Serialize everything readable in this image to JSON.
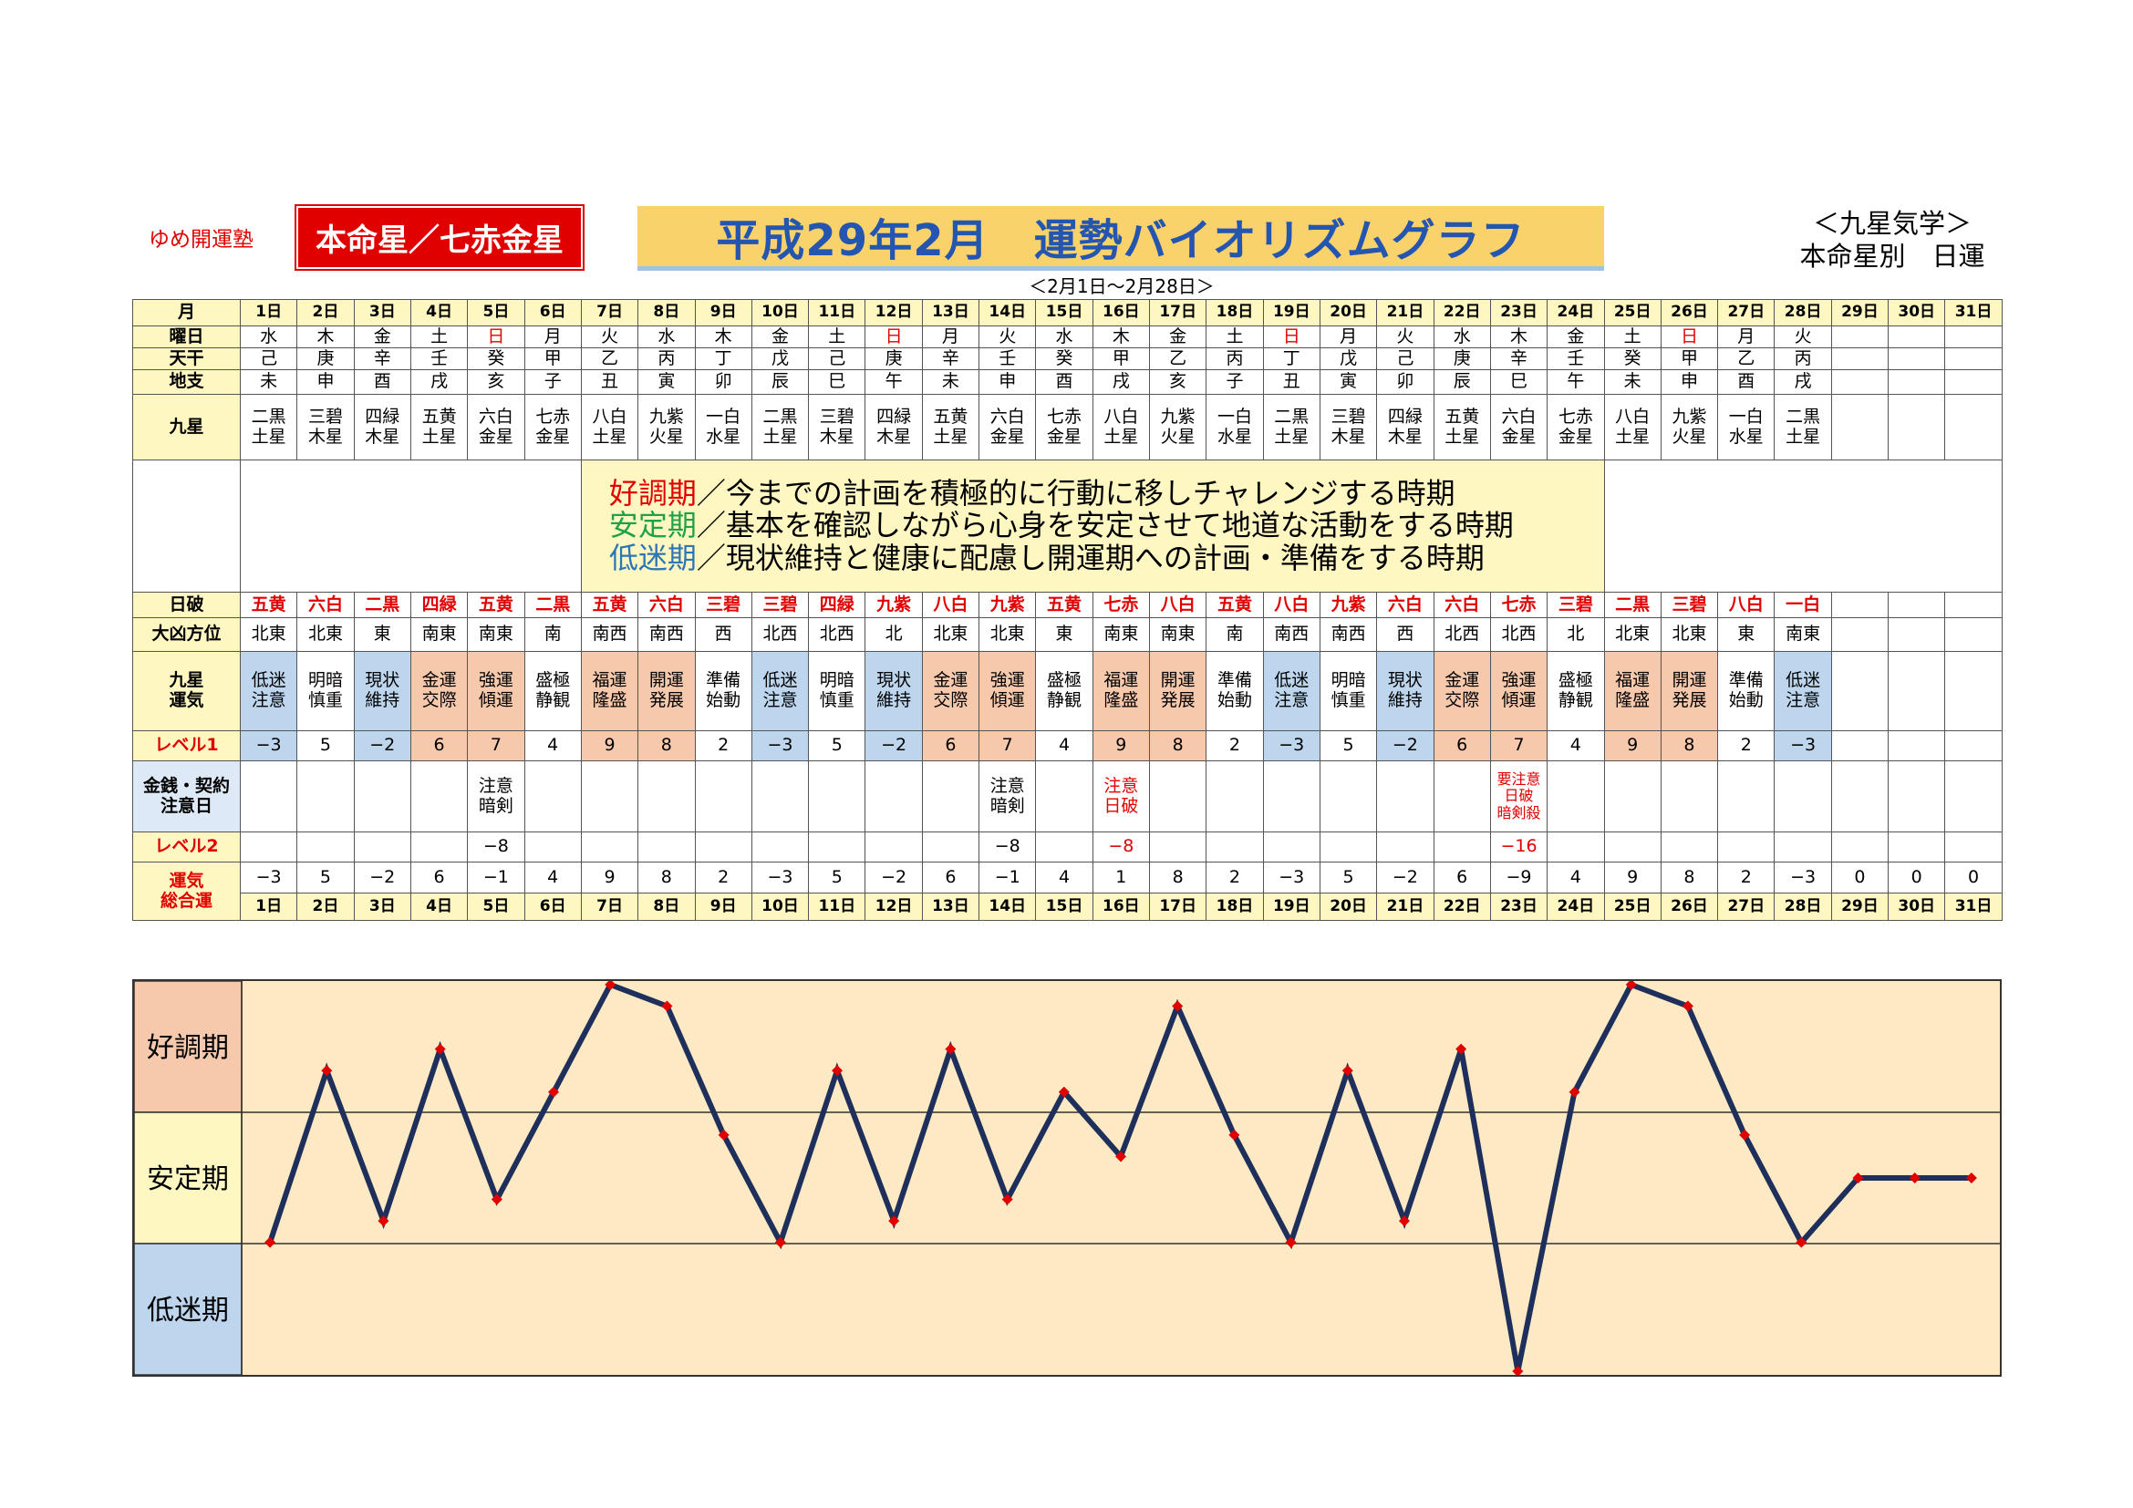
{
  "header": {
    "brand": "ゆめ開運塾",
    "star_label": "本命星／七赤金星",
    "title": "平成29年2月　運勢バイオリズムグラフ",
    "date_range": "＜2月1日～2月28日＞",
    "subtitle_line1": "＜九星気学＞",
    "subtitle_line2": "本命星別　日運"
  },
  "row_labels": {
    "month": "月",
    "weekday": "曜日",
    "tenkan": "天干",
    "chishi": "地支",
    "kyusei": "九星",
    "nippa": "日破",
    "daikyo": "大凶方位",
    "kyusei_unki": "九星\n運気",
    "level1": "レベル1",
    "money": "金銭・契約\n注意日",
    "level2": "レベル2",
    "total": "運気\n総合運"
  },
  "days": [
    "1日",
    "2日",
    "3日",
    "4日",
    "5日",
    "6日",
    "7日",
    "8日",
    "9日",
    "10日",
    "11日",
    "12日",
    "13日",
    "14日",
    "15日",
    "16日",
    "17日",
    "18日",
    "19日",
    "20日",
    "21日",
    "22日",
    "23日",
    "24日",
    "25日",
    "26日",
    "27日",
    "28日",
    "29日",
    "30日",
    "31日"
  ],
  "weekdays": [
    "水",
    "木",
    "金",
    "土",
    "日",
    "月",
    "火",
    "水",
    "木",
    "金",
    "土",
    "日",
    "月",
    "火",
    "水",
    "木",
    "金",
    "土",
    "日",
    "月",
    "火",
    "水",
    "木",
    "金",
    "土",
    "日",
    "月",
    "火",
    "",
    "",
    ""
  ],
  "tenkan": [
    "己",
    "庚",
    "辛",
    "壬",
    "癸",
    "甲",
    "乙",
    "丙",
    "丁",
    "戊",
    "己",
    "庚",
    "辛",
    "壬",
    "癸",
    "甲",
    "乙",
    "丙",
    "丁",
    "戊",
    "己",
    "庚",
    "辛",
    "壬",
    "癸",
    "甲",
    "乙",
    "丙",
    "",
    "",
    ""
  ],
  "chishi": [
    "未",
    "申",
    "酉",
    "戌",
    "亥",
    "子",
    "丑",
    "寅",
    "卯",
    "辰",
    "巳",
    "午",
    "未",
    "申",
    "酉",
    "戌",
    "亥",
    "子",
    "丑",
    "寅",
    "卯",
    "辰",
    "巳",
    "午",
    "未",
    "申",
    "酉",
    "戌",
    "",
    "",
    ""
  ],
  "kyusei": [
    "二黒\n土星",
    "三碧\n木星",
    "四緑\n木星",
    "五黄\n土星",
    "六白\n金星",
    "七赤\n金星",
    "八白\n土星",
    "九紫\n火星",
    "一白\n水星",
    "二黒\n土星",
    "三碧\n木星",
    "四緑\n木星",
    "五黄\n土星",
    "六白\n金星",
    "七赤\n金星",
    "八白\n土星",
    "九紫\n火星",
    "一白\n水星",
    "二黒\n土星",
    "三碧\n木星",
    "四緑\n木星",
    "五黄\n土星",
    "六白\n金星",
    "七赤\n金星",
    "八白\n土星",
    "九紫\n火星",
    "一白\n水星",
    "二黒\n土星",
    "",
    "",
    ""
  ],
  "info": {
    "good_label": "好調期",
    "good_text": "／今までの計画を積極的に行動に移しチャレンジする時期",
    "stable_label": "安定期",
    "stable_text": "／基本を確認しながら心身を安定させて地道な活動をする時期",
    "low_label": "低迷期",
    "low_text": "／現状維持と健康に配慮し開運期への計画・準備をする時期"
  },
  "nippa": [
    "五黄",
    "六白",
    "二黒",
    "四緑",
    "五黄",
    "二黒",
    "五黄",
    "六白",
    "三碧",
    "三碧",
    "四緑",
    "九紫",
    "八白",
    "九紫",
    "五黄",
    "七赤",
    "八白",
    "五黄",
    "八白",
    "九紫",
    "六白",
    "六白",
    "七赤",
    "三碧",
    "二黒",
    "三碧",
    "八白",
    "一白",
    "",
    "",
    ""
  ],
  "daikyo": [
    "北東",
    "北東",
    "東",
    "南東",
    "南東",
    "南",
    "南西",
    "南西",
    "西",
    "北西",
    "北西",
    "北",
    "北東",
    "北東",
    "東",
    "南東",
    "南東",
    "南",
    "南西",
    "南西",
    "西",
    "北西",
    "北西",
    "北",
    "北東",
    "北東",
    "東",
    "南東",
    "",
    "",
    ""
  ],
  "unki": [
    "低迷\n注意",
    "明暗\n慎重",
    "現状\n維持",
    "金運\n交際",
    "強運\n傾運",
    "盛極\n静観",
    "福運\n隆盛",
    "開運\n発展",
    "準備\n始動",
    "低迷\n注意",
    "明暗\n慎重",
    "現状\n維持",
    "金運\n交際",
    "強運\n傾運",
    "盛極\n静観",
    "福運\n隆盛",
    "開運\n発展",
    "準備\n始動",
    "低迷\n注意",
    "明暗\n慎重",
    "現状\n維持",
    "金運\n交際",
    "強運\n傾運",
    "盛極\n静観",
    "福運\n隆盛",
    "開運\n発展",
    "準備\n始動",
    "低迷\n注意",
    "",
    "",
    ""
  ],
  "level1": [
    "−3",
    "5",
    "−2",
    "6",
    "7",
    "4",
    "9",
    "8",
    "2",
    "−3",
    "5",
    "−2",
    "6",
    "7",
    "4",
    "9",
    "8",
    "2",
    "−3",
    "5",
    "−2",
    "6",
    "7",
    "4",
    "9",
    "8",
    "2",
    "−3",
    "",
    "",
    ""
  ],
  "money": [
    "",
    "",
    "",
    "",
    "注意\n暗剣",
    "",
    "",
    "",
    "",
    "",
    "",
    "",
    "",
    "注意\n暗剣",
    "",
    "注意\n日破",
    "",
    "",
    "",
    "",
    "",
    "",
    "要注意\n日破\n暗剣殺",
    "",
    "",
    "",
    "",
    "",
    "",
    "",
    ""
  ],
  "level2": [
    "",
    "",
    "",
    "",
    "−8",
    "",
    "",
    "",
    "",
    "",
    "",
    "",
    "",
    "−8",
    "",
    "−8",
    "",
    "",
    "",
    "",
    "",
    "",
    "−16",
    "",
    "",
    "",
    "",
    "",
    "",
    "",
    ""
  ],
  "total": [
    "−3",
    "5",
    "−2",
    "6",
    "−1",
    "4",
    "9",
    "8",
    "2",
    "−3",
    "5",
    "−2",
    "6",
    "−1",
    "4",
    "1",
    "8",
    "2",
    "−3",
    "5",
    "−2",
    "6",
    "−9",
    "4",
    "9",
    "8",
    "2",
    "−3",
    "0",
    "0",
    "0"
  ],
  "chart_labels": {
    "good": "好調期",
    "stable": "安定期",
    "low": "低迷期"
  },
  "colors": {
    "line": "#1f2f5c",
    "marker": "#e00000",
    "good_band": "#f7c9ac",
    "low_band": "#bdd6ee",
    "plot_bg": "#fde9c3"
  },
  "chart_data": {
    "type": "line",
    "title": "",
    "xlabel": "",
    "ylabel": "",
    "x": [
      "1日",
      "2日",
      "3日",
      "4日",
      "5日",
      "6日",
      "7日",
      "8日",
      "9日",
      "10日",
      "11日",
      "12日",
      "13日",
      "14日",
      "15日",
      "16日",
      "17日",
      "18日",
      "19日",
      "20日",
      "21日",
      "22日",
      "23日",
      "24日",
      "25日",
      "26日",
      "27日",
      "28日",
      "29日",
      "30日",
      "31日"
    ],
    "series": [
      {
        "values": [
          -3,
          5,
          -2,
          6,
          -1,
          4,
          9,
          8,
          2,
          -3,
          5,
          -2,
          6,
          -1,
          4,
          1,
          8,
          2,
          -3,
          5,
          -2,
          6,
          -9,
          4,
          9,
          8,
          2,
          -3,
          0,
          0,
          0
        ]
      }
    ],
    "ylim": [
      -9,
      9
    ],
    "bands": [
      "好調期",
      "安定期",
      "低迷期"
    ],
    "grid": false
  }
}
